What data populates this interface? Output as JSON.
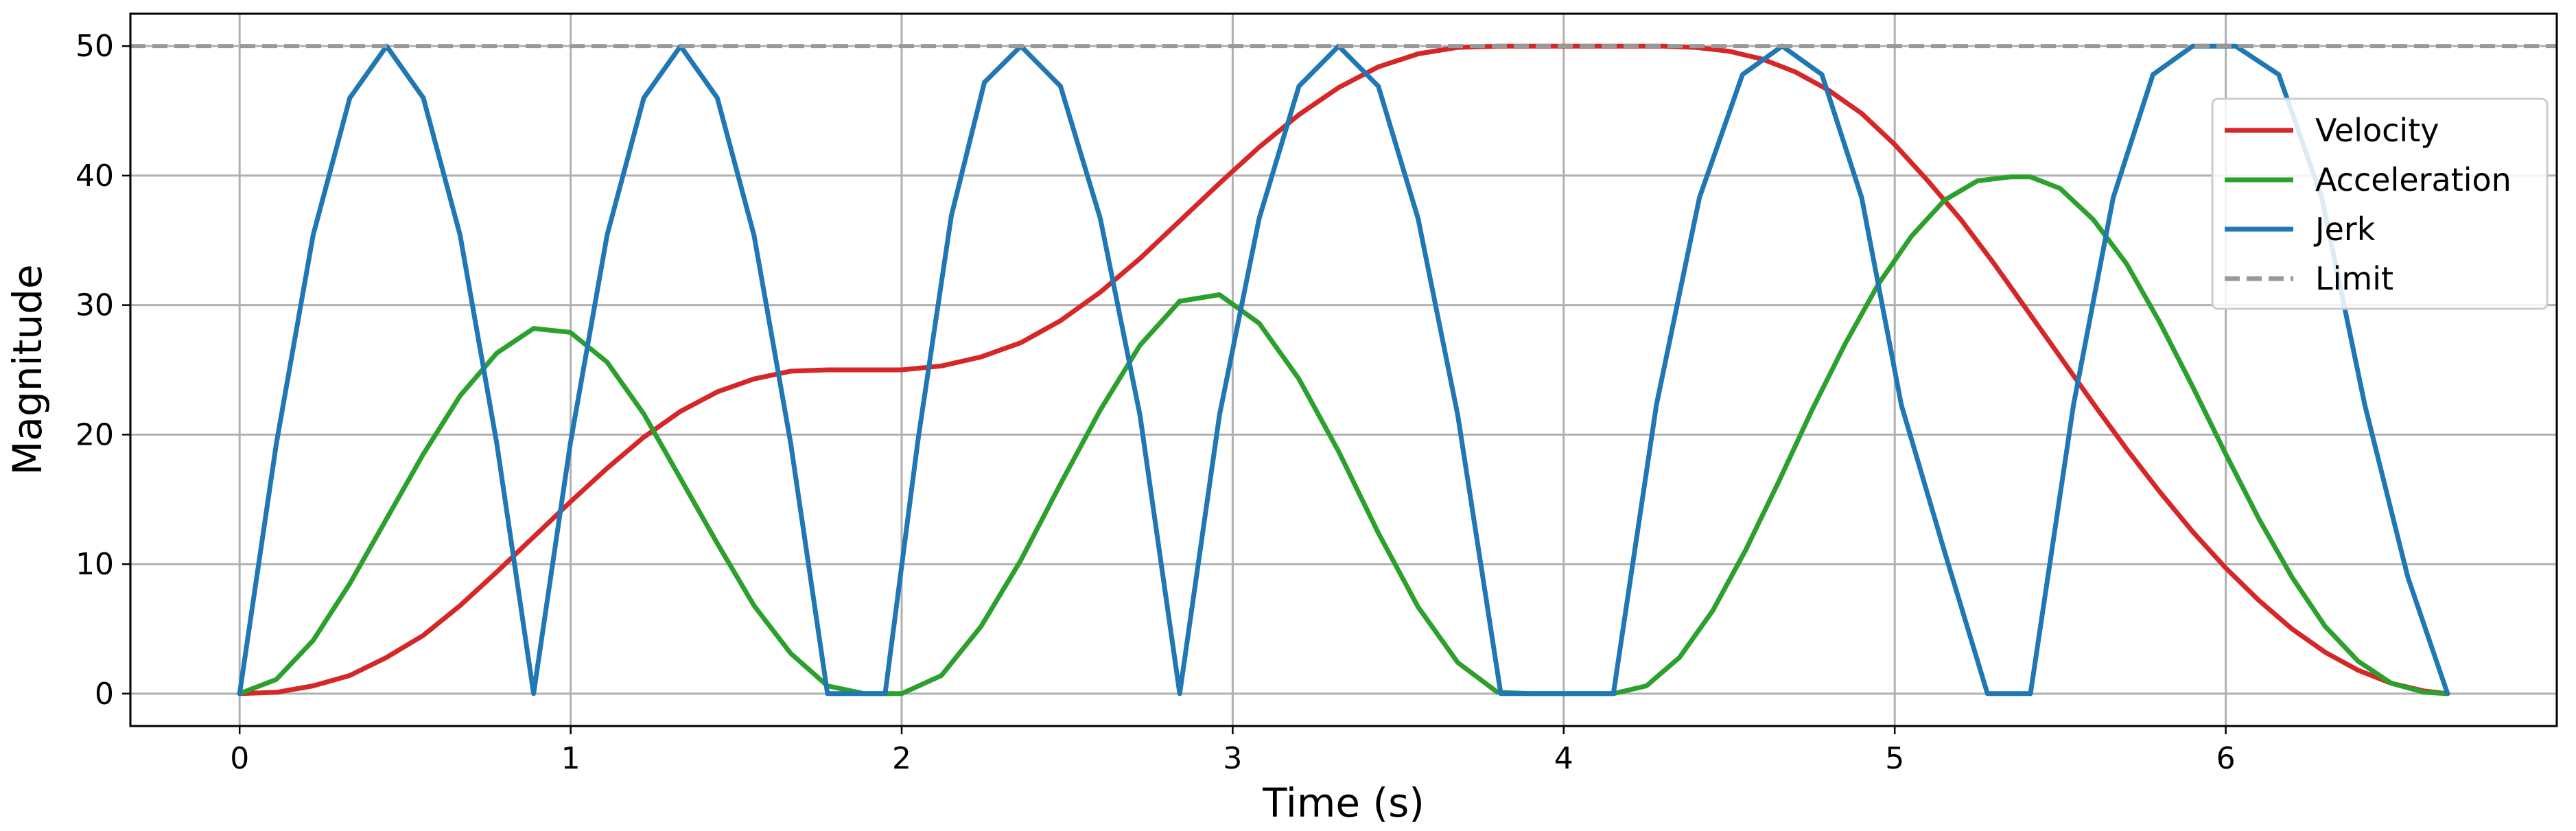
{
  "chart_data": {
    "type": "line",
    "title": "",
    "xlabel": "Time (s)",
    "ylabel": "Magnitude",
    "xlim": [
      -0.33,
      7.0
    ],
    "ylim": [
      -2.5,
      52.5
    ],
    "xticks": [
      0,
      1,
      2,
      3,
      4,
      5,
      6
    ],
    "yticks": [
      0,
      10,
      20,
      30,
      40,
      50
    ],
    "grid": true,
    "legend_position": "top-right",
    "limit": 50,
    "series": [
      {
        "name": "Velocity",
        "color": "#d62728",
        "style": "solid",
        "x": [
          0,
          0.111,
          0.222,
          0.333,
          0.444,
          0.555,
          0.666,
          0.777,
          0.888,
          0.999,
          1.11,
          1.221,
          1.332,
          1.443,
          1.554,
          1.665,
          1.776,
          1.887,
          2.0,
          2.12,
          2.24,
          2.36,
          2.48,
          2.6,
          2.72,
          2.84,
          2.96,
          3.08,
          3.2,
          3.32,
          3.44,
          3.56,
          3.68,
          3.8,
          3.9,
          4.0,
          4.1,
          4.2,
          4.3,
          4.4,
          4.5,
          4.6,
          4.7,
          4.8,
          4.9,
          5.0,
          5.1,
          5.2,
          5.3,
          5.4,
          5.5,
          5.6,
          5.7,
          5.8,
          5.9,
          6.0,
          6.1,
          6.2,
          6.3,
          6.4,
          6.5,
          6.6,
          6.67
        ],
        "y": [
          0,
          0.1,
          0.6,
          1.4,
          2.8,
          4.5,
          6.8,
          9.4,
          12.1,
          14.8,
          17.4,
          19.8,
          21.8,
          23.3,
          24.3,
          24.9,
          25.0,
          25.0,
          25.0,
          25.3,
          26.0,
          27.1,
          28.8,
          31.0,
          33.6,
          36.5,
          39.4,
          42.2,
          44.7,
          46.8,
          48.4,
          49.4,
          49.9,
          50.0,
          50.0,
          50.0,
          50.0,
          50.0,
          50.0,
          49.9,
          49.6,
          49.0,
          48.0,
          46.6,
          44.8,
          42.4,
          39.6,
          36.6,
          33.2,
          29.6,
          26.0,
          22.4,
          18.9,
          15.6,
          12.5,
          9.7,
          7.2,
          5.0,
          3.2,
          1.8,
          0.8,
          0.2,
          0
        ]
      },
      {
        "name": "Acceleration",
        "color": "#2ca02c",
        "style": "solid",
        "x": [
          0,
          0.111,
          0.222,
          0.333,
          0.444,
          0.555,
          0.666,
          0.777,
          0.888,
          0.999,
          1.11,
          1.221,
          1.332,
          1.443,
          1.554,
          1.665,
          1.776,
          1.887,
          2.0,
          2.12,
          2.24,
          2.36,
          2.48,
          2.6,
          2.72,
          2.84,
          2.96,
          3.08,
          3.2,
          3.32,
          3.44,
          3.56,
          3.68,
          3.8,
          3.9,
          4.0,
          4.1,
          4.15,
          4.25,
          4.35,
          4.45,
          4.55,
          4.65,
          4.75,
          4.85,
          4.95,
          5.05,
          5.15,
          5.25,
          5.35,
          5.41,
          5.5,
          5.6,
          5.7,
          5.8,
          5.9,
          6.0,
          6.1,
          6.2,
          6.3,
          6.4,
          6.5,
          6.6,
          6.67
        ],
        "y": [
          0,
          1.1,
          4.1,
          8.5,
          13.5,
          18.5,
          23.0,
          26.3,
          28.2,
          27.9,
          25.6,
          21.6,
          16.6,
          11.6,
          6.8,
          3.1,
          0.6,
          0,
          0,
          1.4,
          5.2,
          10.3,
          16.2,
          21.9,
          26.9,
          30.3,
          30.8,
          28.6,
          24.3,
          18.7,
          12.4,
          6.7,
          2.4,
          0.1,
          0,
          0,
          0,
          0,
          0.6,
          2.8,
          6.4,
          11.1,
          16.4,
          21.9,
          27.0,
          31.6,
          35.3,
          38.1,
          39.6,
          39.9,
          39.9,
          39.0,
          36.6,
          33.2,
          28.7,
          23.7,
          18.5,
          13.5,
          9.0,
          5.2,
          2.5,
          0.8,
          0.1,
          0
        ]
      },
      {
        "name": "Jerk",
        "color": "#1f77b4",
        "style": "solid",
        "x": [
          0,
          0.111,
          0.222,
          0.333,
          0.444,
          0.555,
          0.666,
          0.777,
          0.888,
          0.999,
          1.11,
          1.221,
          1.332,
          1.443,
          1.554,
          1.665,
          1.776,
          1.887,
          1.95,
          2.05,
          2.15,
          2.25,
          2.36,
          2.48,
          2.6,
          2.72,
          2.84,
          2.96,
          3.08,
          3.2,
          3.32,
          3.44,
          3.56,
          3.68,
          3.81,
          3.95,
          4.05,
          4.15,
          4.28,
          4.41,
          4.54,
          4.66,
          4.78,
          4.9,
          5.02,
          5.15,
          5.28,
          5.41,
          5.54,
          5.66,
          5.78,
          5.9,
          6.03,
          6.16,
          6.29,
          6.42,
          6.55,
          6.67
        ],
        "y": [
          0,
          19.3,
          35.4,
          46.0,
          50.0,
          46.0,
          35.4,
          19.3,
          0,
          19.3,
          35.4,
          46.0,
          50.0,
          46.0,
          35.4,
          19.3,
          0,
          0,
          0,
          19.7,
          36.9,
          47.2,
          50.0,
          46.9,
          36.7,
          21.5,
          0,
          21.5,
          36.7,
          46.9,
          50.0,
          46.9,
          36.7,
          21.5,
          0,
          0,
          0,
          0,
          22.3,
          38.3,
          47.8,
          50.0,
          47.8,
          38.3,
          22.3,
          11.0,
          0,
          0,
          22.3,
          38.3,
          47.8,
          50.0,
          50.0,
          47.8,
          38.3,
          22.3,
          9.0,
          0
        ]
      }
    ]
  },
  "legend": {
    "items": [
      {
        "label": "Velocity",
        "color": "#d62728",
        "style": "solid"
      },
      {
        "label": "Acceleration",
        "color": "#2ca02c",
        "style": "solid"
      },
      {
        "label": "Jerk",
        "color": "#1f77b4",
        "style": "solid"
      },
      {
        "label": "Limit",
        "color": "#999999",
        "style": "dashed"
      }
    ]
  }
}
